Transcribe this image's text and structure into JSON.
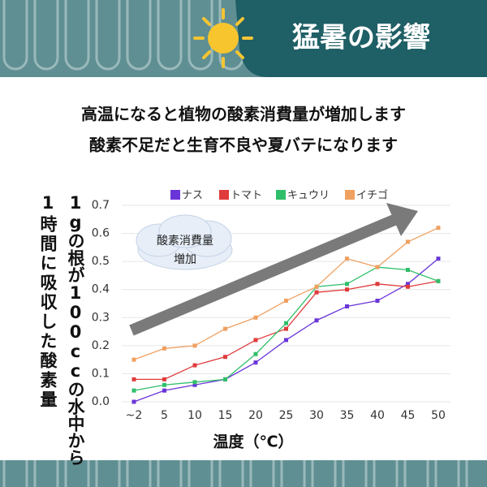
{
  "header": {
    "title": "猛暑の影響"
  },
  "intro": {
    "lines": [
      "高温になると植物の酸素消費量が増加します",
      "酸素不足だと生育不良や夏バテになります"
    ]
  },
  "chart_data": {
    "type": "line",
    "y_label_lines": [
      "1gの根が100ccの水中から",
      "1時間に吸収した酸素量"
    ],
    "x_label": "温度（℃）",
    "annotation_lines": [
      "酸素消費量",
      "増加"
    ],
    "categories": [
      "~2",
      "5",
      "10",
      "15",
      "20",
      "25",
      "30",
      "35",
      "40",
      "45",
      "50"
    ],
    "series": [
      {
        "name": "ナス",
        "color": "#6a35d8",
        "values": [
          0.0,
          0.04,
          0.06,
          0.08,
          0.14,
          0.22,
          0.29,
          0.34,
          0.36,
          0.42,
          0.51
        ]
      },
      {
        "name": "トマト",
        "color": "#e03b3b",
        "values": [
          0.08,
          0.08,
          0.13,
          0.16,
          0.22,
          0.26,
          0.39,
          0.4,
          0.42,
          0.41,
          0.43
        ]
      },
      {
        "name": "キュウリ",
        "color": "#2fbf6a",
        "values": [
          0.04,
          0.06,
          0.07,
          0.08,
          0.17,
          0.28,
          0.41,
          0.42,
          0.48,
          0.47,
          0.43
        ]
      },
      {
        "name": "イチゴ",
        "color": "#f0a060",
        "values": [
          0.15,
          0.19,
          0.2,
          0.26,
          0.3,
          0.36,
          0.41,
          0.51,
          0.48,
          0.57,
          0.62
        ]
      }
    ],
    "ylim": [
      0,
      0.7
    ],
    "yticks": [
      {
        "value": 0,
        "label": "0.0"
      },
      0.1,
      0.2,
      0.3,
      0.4,
      0.5,
      0.6,
      0.7
    ],
    "grid": true
  }
}
